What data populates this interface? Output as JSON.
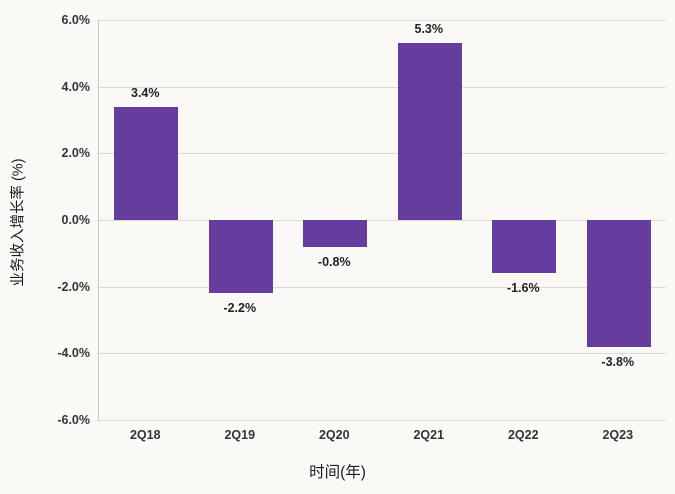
{
  "chart_data": {
    "type": "bar",
    "title": "",
    "xlabel": "时间(年)",
    "ylabel": "业务收入增长率 (%)",
    "categories": [
      "2Q18",
      "2Q19",
      "2Q20",
      "2Q21",
      "2Q22",
      "2Q23"
    ],
    "values": [
      3.4,
      -2.2,
      -0.8,
      5.3,
      -1.6,
      -3.8
    ],
    "data_labels": [
      "3.4%",
      "-2.2%",
      "-0.8%",
      "5.3%",
      "-1.6%",
      "-3.8%"
    ],
    "ylim": [
      -6,
      6
    ],
    "ytick_step": 2,
    "ytick_labels": [
      "6.0%",
      "4.0%",
      "2.0%",
      "0.0%",
      "-2.0%",
      "-4.0%",
      "-6.0%"
    ],
    "grid": true,
    "legend": null,
    "bar_color": "#653d9e",
    "background_color": "#fbf9f6",
    "gridline_color": "#dbdad7"
  }
}
